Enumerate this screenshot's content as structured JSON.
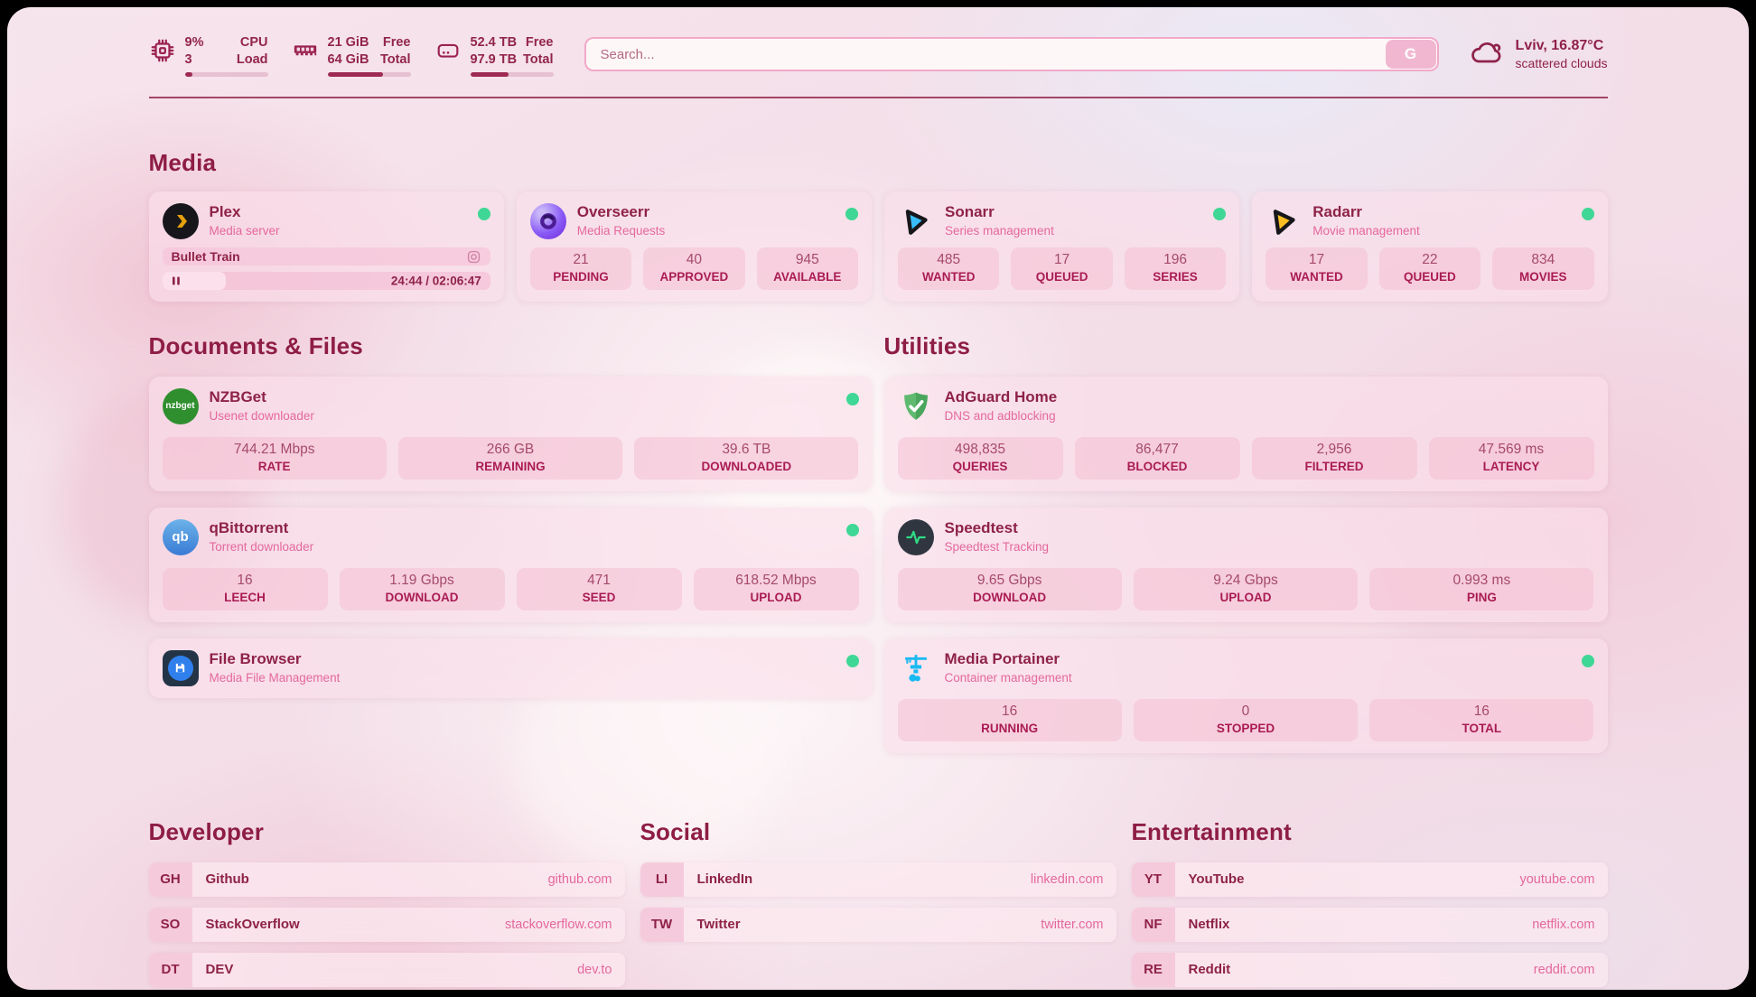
{
  "colors": {
    "accent": "#8e1d45",
    "link_pink": "#e4689d",
    "online_dot": "#3fd795"
  },
  "header": {
    "system": [
      {
        "id": "cpu",
        "icon": "cpu-icon",
        "values": [
          "9%",
          "3"
        ],
        "labels": [
          "CPU",
          "Load"
        ],
        "percent": 9
      },
      {
        "id": "memory",
        "icon": "ram-icon",
        "values": [
          "21 GiB",
          "64 GiB"
        ],
        "labels": [
          "Free",
          "Total"
        ],
        "percent": 67
      },
      {
        "id": "disk",
        "icon": "disk-icon",
        "values": [
          "52.4 TB",
          "97.9 TB"
        ],
        "labels": [
          "Free",
          "Total"
        ],
        "percent": 46
      }
    ],
    "search": {
      "placeholder": "Search...",
      "button_label": "G"
    },
    "weather": {
      "icon": "cloud-icon",
      "location": "Lviv, 16.87°C",
      "condition": "scattered clouds"
    }
  },
  "sections": {
    "media": {
      "title": "Media",
      "apps": [
        {
          "id": "plex",
          "name": "Plex",
          "subtitle": "Media server",
          "icon": "plex-icon",
          "online": true,
          "media": {
            "title": "Bullet Train",
            "time": "24:44 / 02:06:47",
            "progress_percent": 19.5
          }
        },
        {
          "id": "overseerr",
          "name": "Overseerr",
          "subtitle": "Media Requests",
          "icon": "overseerr-icon",
          "online": true,
          "stats": [
            {
              "value": "21",
              "label": "PENDING"
            },
            {
              "value": "40",
              "label": "APPROVED"
            },
            {
              "value": "945",
              "label": "AVAILABLE"
            }
          ]
        },
        {
          "id": "sonarr",
          "name": "Sonarr",
          "subtitle": "Series management",
          "icon": "sonarr-icon",
          "online": true,
          "stats": [
            {
              "value": "485",
              "label": "WANTED"
            },
            {
              "value": "17",
              "label": "QUEUED"
            },
            {
              "value": "196",
              "label": "SERIES"
            }
          ]
        },
        {
          "id": "radarr",
          "name": "Radarr",
          "subtitle": "Movie management",
          "icon": "radarr-icon",
          "online": true,
          "stats": [
            {
              "value": "17",
              "label": "WANTED"
            },
            {
              "value": "22",
              "label": "QUEUED"
            },
            {
              "value": "834",
              "label": "MOVIES"
            }
          ]
        }
      ]
    },
    "documents": {
      "title": "Documents & Files",
      "apps": [
        {
          "id": "nzbget",
          "name": "NZBGet",
          "subtitle": "Usenet downloader",
          "icon": "nzbget-icon",
          "online": true,
          "stats": [
            {
              "value": "744.21 Mbps",
              "label": "RATE"
            },
            {
              "value": "266 GB",
              "label": "REMAINING"
            },
            {
              "value": "39.6 TB",
              "label": "DOWNLOADED"
            }
          ]
        },
        {
          "id": "qbittorrent",
          "name": "qBittorrent",
          "subtitle": "Torrent downloader",
          "icon": "qbittorrent-icon",
          "online": true,
          "stats": [
            {
              "value": "16",
              "label": "LEECH"
            },
            {
              "value": "1.19 Gbps",
              "label": "DOWNLOAD"
            },
            {
              "value": "471",
              "label": "SEED"
            },
            {
              "value": "618.52 Mbps",
              "label": "UPLOAD"
            }
          ]
        },
        {
          "id": "filebrowser",
          "name": "File Browser",
          "subtitle": "Media File Management",
          "icon": "filebrowser-icon",
          "online": true
        }
      ]
    },
    "utilities": {
      "title": "Utilities",
      "apps": [
        {
          "id": "adguard",
          "name": "AdGuard Home",
          "subtitle": "DNS and adblocking",
          "icon": "adguard-icon",
          "online": false,
          "stats": [
            {
              "value": "498,835",
              "label": "QUERIES"
            },
            {
              "value": "86,477",
              "label": "BLOCKED"
            },
            {
              "value": "2,956",
              "label": "FILTERED"
            },
            {
              "value": "47.569 ms",
              "label": "LATENCY"
            }
          ]
        },
        {
          "id": "speedtest",
          "name": "Speedtest",
          "subtitle": "Speedtest Tracking",
          "icon": "speedtest-icon",
          "online": false,
          "stats": [
            {
              "value": "9.65 Gbps",
              "label": "DOWNLOAD"
            },
            {
              "value": "9.24 Gbps",
              "label": "UPLOAD"
            },
            {
              "value": "0.993 ms",
              "label": "PING"
            }
          ]
        },
        {
          "id": "portainer",
          "name": "Media Portainer",
          "subtitle": "Container management",
          "icon": "portainer-icon",
          "online": true,
          "stats": [
            {
              "value": "16",
              "label": "RUNNING"
            },
            {
              "value": "0",
              "label": "STOPPED"
            },
            {
              "value": "16",
              "label": "TOTAL"
            }
          ]
        }
      ]
    },
    "bookmarks": [
      {
        "title": "Developer",
        "links": [
          {
            "abbr": "GH",
            "name": "Github",
            "url": "github.com"
          },
          {
            "abbr": "SO",
            "name": "StackOverflow",
            "url": "stackoverflow.com"
          },
          {
            "abbr": "DT",
            "name": "DEV",
            "url": "dev.to"
          }
        ]
      },
      {
        "title": "Social",
        "links": [
          {
            "abbr": "LI",
            "name": "LinkedIn",
            "url": "linkedin.com"
          },
          {
            "abbr": "TW",
            "name": "Twitter",
            "url": "twitter.com"
          }
        ]
      },
      {
        "title": "Entertainment",
        "links": [
          {
            "abbr": "YT",
            "name": "YouTube",
            "url": "youtube.com"
          },
          {
            "abbr": "NF",
            "name": "Netflix",
            "url": "netflix.com"
          },
          {
            "abbr": "RE",
            "name": "Reddit",
            "url": "reddit.com"
          }
        ]
      }
    ]
  }
}
